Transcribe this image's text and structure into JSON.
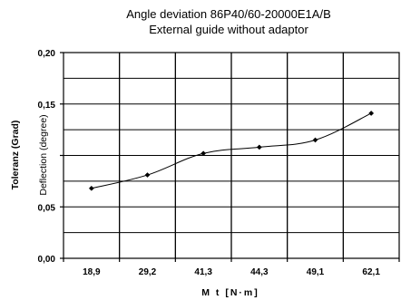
{
  "chart_data": {
    "type": "line",
    "title_line1": "Angle deviation 86P40/60-20000E1A/B",
    "title_line2": "External guide without adaptor",
    "xlabel": "M t [N·m]",
    "ylabel": "Toleranz (Grad)",
    "ylabel_overlay": "Deflection (degree)",
    "categories": [
      "18,9",
      "29,2",
      "41,3",
      "44,3",
      "49,1",
      "62,1"
    ],
    "values": [
      0.068,
      0.081,
      0.102,
      0.108,
      0.115,
      0.141
    ],
    "ylim": [
      0,
      0.2
    ],
    "yticks": [
      "0,00",
      "0,05",
      "0,10",
      "0,15",
      "0,20"
    ],
    "yticks_labeled": [
      "0,00",
      "0,05",
      "0,15",
      "0,20"
    ],
    "grid": true,
    "line_color": "#000000",
    "marker": "diamond"
  }
}
